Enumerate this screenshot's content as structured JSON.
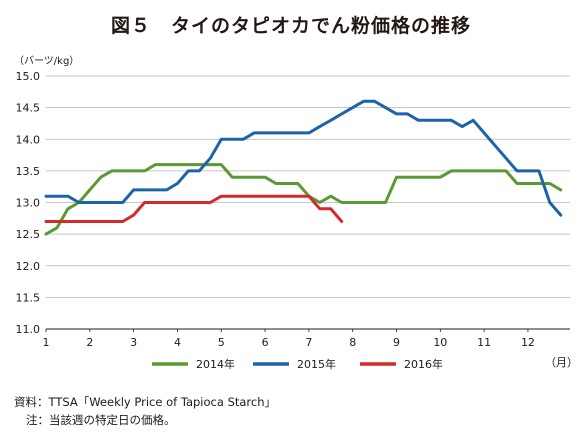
{
  "chart_data": {
    "type": "line",
    "title": "図５　タイのタピオカでん粉価格の推移",
    "ylabel": "（バーツ/kg）",
    "xlabel": "（月）",
    "ylim": [
      11.0,
      15.0
    ],
    "yticks": [
      "11.0",
      "11.5",
      "12.0",
      "12.5",
      "13.0",
      "13.5",
      "14.0",
      "14.5",
      "15.0"
    ],
    "xlim": [
      1,
      12.96
    ],
    "xticks": [
      "1",
      "2",
      "3",
      "4",
      "5",
      "6",
      "7",
      "8",
      "9",
      "10",
      "11",
      "12"
    ],
    "grid": "horizontal",
    "legend": "bottom",
    "series": [
      {
        "name": "2014年",
        "color": "#5a9a32",
        "points": [
          [
            1.0,
            12.5
          ],
          [
            1.25,
            12.6
          ],
          [
            1.5,
            12.9
          ],
          [
            1.75,
            13.0
          ],
          [
            2.0,
            13.2
          ],
          [
            2.25,
            13.4
          ],
          [
            2.5,
            13.5
          ],
          [
            2.75,
            13.5
          ],
          [
            3.0,
            13.5
          ],
          [
            3.25,
            13.5
          ],
          [
            3.5,
            13.6
          ],
          [
            3.75,
            13.6
          ],
          [
            4.0,
            13.6
          ],
          [
            4.25,
            13.6
          ],
          [
            4.5,
            13.6
          ],
          [
            4.75,
            13.6
          ],
          [
            5.0,
            13.6
          ],
          [
            5.25,
            13.4
          ],
          [
            5.5,
            13.4
          ],
          [
            5.75,
            13.4
          ],
          [
            6.0,
            13.4
          ],
          [
            6.25,
            13.3
          ],
          [
            6.5,
            13.3
          ],
          [
            6.75,
            13.3
          ],
          [
            7.0,
            13.1
          ],
          [
            7.25,
            13.0
          ],
          [
            7.5,
            13.1
          ],
          [
            7.75,
            13.0
          ],
          [
            8.0,
            13.0
          ],
          [
            8.25,
            13.0
          ],
          [
            8.5,
            13.0
          ],
          [
            8.75,
            13.0
          ],
          [
            9.0,
            13.4
          ],
          [
            9.25,
            13.4
          ],
          [
            9.5,
            13.4
          ],
          [
            9.75,
            13.4
          ],
          [
            10.0,
            13.4
          ],
          [
            10.25,
            13.5
          ],
          [
            10.5,
            13.5
          ],
          [
            10.75,
            13.5
          ],
          [
            11.0,
            13.5
          ],
          [
            11.25,
            13.5
          ],
          [
            11.5,
            13.5
          ],
          [
            11.75,
            13.3
          ],
          [
            12.0,
            13.3
          ],
          [
            12.25,
            13.3
          ],
          [
            12.5,
            13.3
          ],
          [
            12.75,
            13.2
          ]
        ]
      },
      {
        "name": "2015年",
        "color": "#1c63a8",
        "points": [
          [
            1.0,
            13.1
          ],
          [
            1.25,
            13.1
          ],
          [
            1.5,
            13.1
          ],
          [
            1.75,
            13.0
          ],
          [
            2.0,
            13.0
          ],
          [
            2.25,
            13.0
          ],
          [
            2.5,
            13.0
          ],
          [
            2.75,
            13.0
          ],
          [
            3.0,
            13.2
          ],
          [
            3.25,
            13.2
          ],
          [
            3.5,
            13.2
          ],
          [
            3.75,
            13.2
          ],
          [
            4.0,
            13.3
          ],
          [
            4.25,
            13.5
          ],
          [
            4.5,
            13.5
          ],
          [
            4.75,
            13.7
          ],
          [
            5.0,
            14.0
          ],
          [
            5.25,
            14.0
          ],
          [
            5.5,
            14.0
          ],
          [
            5.75,
            14.1
          ],
          [
            6.0,
            14.1
          ],
          [
            6.25,
            14.1
          ],
          [
            6.5,
            14.1
          ],
          [
            6.75,
            14.1
          ],
          [
            7.0,
            14.1
          ],
          [
            7.25,
            14.2
          ],
          [
            7.5,
            14.3
          ],
          [
            7.75,
            14.4
          ],
          [
            8.0,
            14.5
          ],
          [
            8.25,
            14.6
          ],
          [
            8.5,
            14.6
          ],
          [
            8.75,
            14.5
          ],
          [
            9.0,
            14.4
          ],
          [
            9.25,
            14.4
          ],
          [
            9.5,
            14.3
          ],
          [
            9.75,
            14.3
          ],
          [
            10.0,
            14.3
          ],
          [
            10.25,
            14.3
          ],
          [
            10.5,
            14.2
          ],
          [
            10.75,
            14.3
          ],
          [
            11.0,
            14.1
          ],
          [
            11.25,
            13.9
          ],
          [
            11.5,
            13.7
          ],
          [
            11.75,
            13.5
          ],
          [
            12.0,
            13.5
          ],
          [
            12.25,
            13.5
          ],
          [
            12.5,
            13.0
          ],
          [
            12.75,
            12.8
          ],
          [
            13.0,
            12.7
          ],
          [
            13.25,
            12.7
          ]
        ]
      },
      {
        "name": "2016年",
        "color": "#d42a2a",
        "points": [
          [
            1.0,
            12.7
          ],
          [
            1.25,
            12.7
          ],
          [
            1.5,
            12.7
          ],
          [
            1.75,
            12.7
          ],
          [
            2.0,
            12.7
          ],
          [
            2.25,
            12.7
          ],
          [
            2.5,
            12.7
          ],
          [
            2.75,
            12.7
          ],
          [
            3.0,
            12.8
          ],
          [
            3.25,
            13.0
          ],
          [
            3.5,
            13.0
          ],
          [
            3.75,
            13.0
          ],
          [
            4.0,
            13.0
          ],
          [
            4.25,
            13.0
          ],
          [
            4.5,
            13.0
          ],
          [
            4.75,
            13.0
          ],
          [
            5.0,
            13.1
          ],
          [
            5.25,
            13.1
          ],
          [
            5.5,
            13.1
          ],
          [
            5.75,
            13.1
          ],
          [
            6.0,
            13.1
          ],
          [
            6.25,
            13.1
          ],
          [
            6.5,
            13.1
          ],
          [
            6.75,
            13.1
          ],
          [
            7.0,
            13.1
          ],
          [
            7.25,
            12.9
          ],
          [
            7.5,
            12.9
          ],
          [
            7.75,
            12.7
          ]
        ]
      }
    ]
  },
  "notes": {
    "source": "資料：TTSA「Weekly Price of Tapioca Starch」",
    "footnote": "注：当該週の特定日の価格。"
  }
}
